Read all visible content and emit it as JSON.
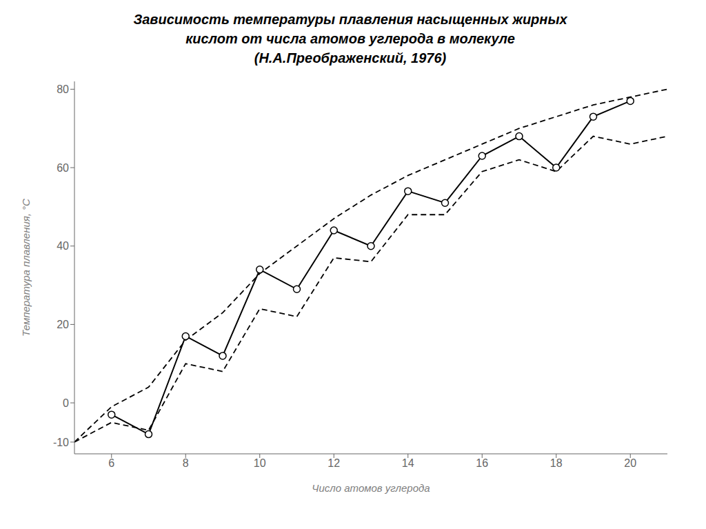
{
  "chart_data": {
    "type": "line",
    "title": "Зависимость температуры плавления насыщенных жирных\nкислот от числа атомов углерода в молекуле\n(Н.А.Преображенский, 1976)",
    "x_label": "Число атомов углерода",
    "y_label": "Температура плавления, °С",
    "xlim": [
      5,
      21
    ],
    "ylim": [
      -13,
      82
    ],
    "xticks": [
      6,
      8,
      10,
      12,
      14,
      16,
      18,
      20
    ],
    "yticks": [
      -10,
      0,
      20,
      40,
      60,
      80
    ],
    "grid": false,
    "series": [
      {
        "x": [
          5,
          6,
          7,
          8,
          9,
          10,
          11,
          12,
          13,
          14,
          15,
          16,
          17,
          18,
          19,
          20,
          21
        ],
        "values": [
          -10,
          -1,
          4,
          16,
          23,
          33,
          40,
          47,
          53,
          58,
          62,
          66,
          70,
          73,
          76,
          78,
          80
        ],
        "color": "#000000",
        "line_style": "dashed",
        "marker": "none"
      },
      {
        "x": [
          5,
          6,
          7,
          8,
          9,
          10,
          11,
          12,
          13,
          14,
          15,
          16,
          17,
          18,
          19,
          20,
          21
        ],
        "values": [
          -10,
          -5,
          -7,
          10,
          8,
          24,
          22,
          37,
          36,
          48,
          48,
          59,
          62,
          59,
          68,
          66,
          68
        ],
        "color": "#000000",
        "line_style": "dashed",
        "marker": "none"
      },
      {
        "x": [
          6,
          7,
          8,
          9,
          10,
          11,
          12,
          13,
          14,
          15,
          16,
          17,
          18,
          19,
          20
        ],
        "values": [
          -3,
          -8,
          17,
          12,
          34,
          29,
          44,
          40,
          54,
          51,
          63,
          68,
          60,
          73,
          77
        ],
        "color": "#000000",
        "line_style": "solid",
        "marker": "circle"
      }
    ]
  }
}
